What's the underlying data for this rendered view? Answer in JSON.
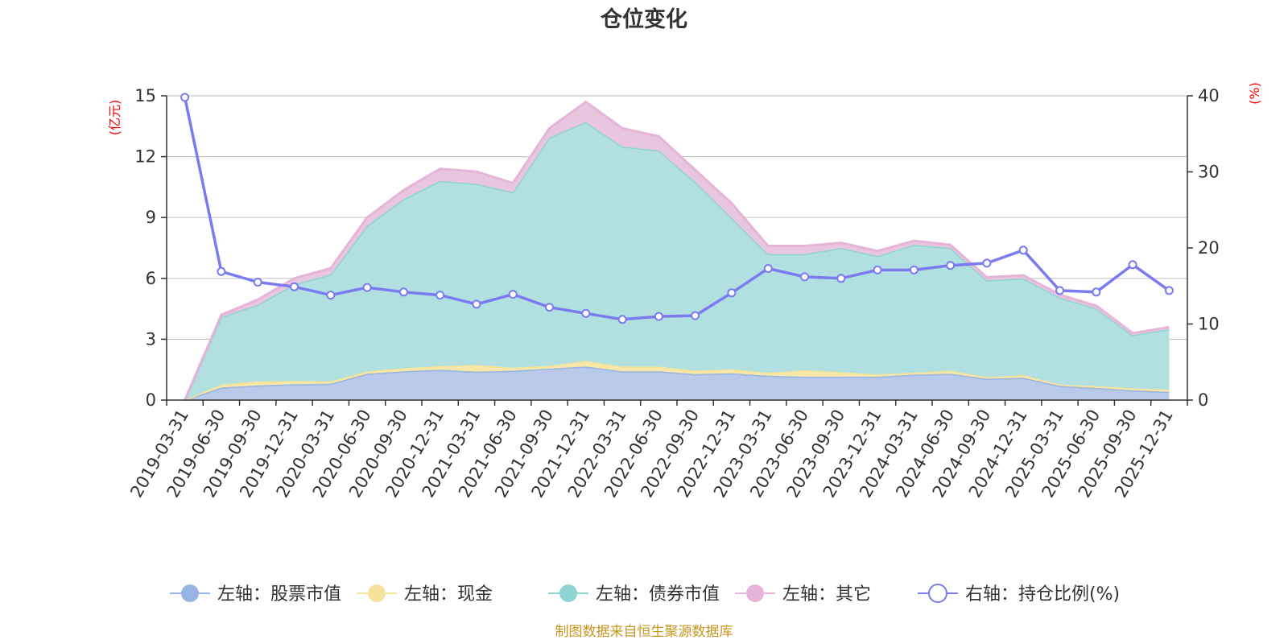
{
  "title": "仓位变化",
  "footer": "制图数据来自恒生聚源数据库",
  "chart_data": {
    "type": "area",
    "title": "仓位变化",
    "categories": [
      "2019-03-31",
      "2019-06-30",
      "2019-09-30",
      "2019-12-31",
      "2020-03-31",
      "2020-06-30",
      "2020-09-30",
      "2020-12-31",
      "2021-03-31",
      "2021-06-30",
      "2021-09-30",
      "2021-12-31",
      "2022-03-31",
      "2022-06-30",
      "2022-09-30",
      "2022-12-31",
      "2023-03-31",
      "2023-06-30",
      "2023-09-30",
      "2023-12-31",
      "2024-03-31",
      "2024-06-30",
      "2024-09-30",
      "2024-12-31",
      "2025-03-31",
      "2025-06-30",
      "2025-09-30",
      "2025-12-31"
    ],
    "left_axis": {
      "unit": "(亿元)",
      "ylim": [
        0,
        15
      ],
      "ticks": [
        0,
        3,
        6,
        9,
        12,
        15
      ]
    },
    "right_axis": {
      "unit": "(%)",
      "ylim": [
        0,
        40
      ],
      "ticks": [
        0,
        10,
        20,
        30,
        40
      ]
    },
    "stacked_series": [
      {
        "name": "左轴：股票市值",
        "color": "#98b4e2",
        "fill": "#b8c9ea",
        "values": [
          0.0,
          0.62,
          0.72,
          0.78,
          0.8,
          1.3,
          1.42,
          1.5,
          1.4,
          1.45,
          1.55,
          1.65,
          1.42,
          1.42,
          1.28,
          1.32,
          1.2,
          1.15,
          1.15,
          1.15,
          1.25,
          1.3,
          1.05,
          1.1,
          0.7,
          0.6,
          0.48,
          0.4
        ]
      },
      {
        "name": "左轴：现金",
        "color": "#f5e39b",
        "fill": "#f7e7a8",
        "values": [
          0.0,
          0.15,
          0.2,
          0.16,
          0.12,
          0.12,
          0.15,
          0.17,
          0.33,
          0.15,
          0.14,
          0.28,
          0.23,
          0.23,
          0.17,
          0.2,
          0.15,
          0.32,
          0.23,
          0.12,
          0.1,
          0.15,
          0.08,
          0.13,
          0.07,
          0.09,
          0.1,
          0.12
        ]
      },
      {
        "name": "左轴：债券市值",
        "color": "#8fd3d3",
        "fill": "#b2e0e0",
        "values": [
          0.0,
          3.33,
          3.78,
          4.76,
          5.28,
          7.18,
          8.33,
          9.13,
          8.93,
          8.65,
          11.26,
          11.77,
          10.85,
          10.65,
          9.3,
          7.48,
          5.85,
          5.73,
          6.12,
          5.83,
          6.3,
          6.05,
          4.77,
          4.77,
          4.28,
          3.83,
          2.62,
          2.98
        ]
      },
      {
        "name": "左轴：其它",
        "color": "#e6b4d8",
        "fill": "#e9c6df",
        "values": [
          0.0,
          0.1,
          0.25,
          0.3,
          0.3,
          0.4,
          0.45,
          0.6,
          0.6,
          0.45,
          0.45,
          1.0,
          0.9,
          0.7,
          0.6,
          0.7,
          0.4,
          0.4,
          0.25,
          0.25,
          0.2,
          0.15,
          0.15,
          0.15,
          0.15,
          0.13,
          0.1,
          0.1
        ]
      }
    ],
    "line_series": {
      "name": "右轴：持仓比例(%)",
      "color": "#7b7bf0",
      "values": [
        39.8,
        16.9,
        15.5,
        14.9,
        13.8,
        14.8,
        14.2,
        13.8,
        12.6,
        13.9,
        12.2,
        11.4,
        10.6,
        11.0,
        11.1,
        14.1,
        17.3,
        16.2,
        16.0,
        17.1,
        17.1,
        17.7,
        18.0,
        19.7,
        14.4,
        14.2,
        17.8,
        14.4
      ]
    },
    "grid": true,
    "legend_position": "bottom"
  }
}
